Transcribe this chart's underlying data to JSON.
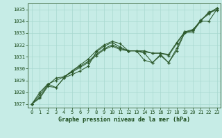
{
  "title": "Graphe pression niveau de la mer (hPa)",
  "background_color": "#c6ece6",
  "grid_color": "#a8d8d0",
  "line_color": "#2d5a2d",
  "marker_color": "#2d5a2d",
  "text_color": "#1a4a1a",
  "xlim": [
    -0.5,
    23.5
  ],
  "ylim": [
    1026.7,
    1035.5
  ],
  "yticks": [
    1027,
    1028,
    1029,
    1030,
    1031,
    1032,
    1033,
    1034,
    1035
  ],
  "xticks": [
    0,
    1,
    2,
    3,
    4,
    5,
    6,
    7,
    8,
    9,
    10,
    11,
    12,
    13,
    14,
    15,
    16,
    17,
    18,
    19,
    20,
    21,
    22,
    23
  ],
  "series": [
    [
      1027.0,
      1027.5,
      1028.5,
      1028.4,
      1029.2,
      1029.5,
      1029.8,
      1030.2,
      1031.4,
      1031.9,
      1032.2,
      1031.8,
      1031.5,
      1031.5,
      1031.3,
      1030.5,
      1031.1,
      1030.5,
      1031.5,
      1033.0,
      1033.1,
      1034.0,
      1034.8,
      1034.9
    ],
    [
      1027.0,
      1027.6,
      1028.6,
      1029.2,
      1029.3,
      1029.7,
      1030.1,
      1030.5,
      1031.1,
      1031.6,
      1031.9,
      1031.6,
      1031.5,
      1031.5,
      1031.5,
      1031.3,
      1031.3,
      1031.2,
      1032.2,
      1033.1,
      1033.2,
      1034.1,
      1034.6,
      1035.1
    ],
    [
      1027.0,
      1027.8,
      1028.7,
      1029.0,
      1029.3,
      1029.8,
      1030.2,
      1030.6,
      1031.2,
      1031.7,
      1032.0,
      1031.7,
      1031.5,
      1031.5,
      1031.4,
      1031.3,
      1031.3,
      1031.1,
      1032.1,
      1033.1,
      1033.2,
      1034.1,
      1034.7,
      1035.1
    ],
    [
      1027.0,
      1028.0,
      1028.7,
      1028.4,
      1029.2,
      1029.8,
      1030.3,
      1030.8,
      1031.5,
      1032.0,
      1032.3,
      1032.1,
      1031.5,
      1031.5,
      1030.7,
      1030.5,
      1031.2,
      1030.5,
      1031.7,
      1033.1,
      1033.3,
      1034.0,
      1034.0,
      1035.0
    ]
  ]
}
